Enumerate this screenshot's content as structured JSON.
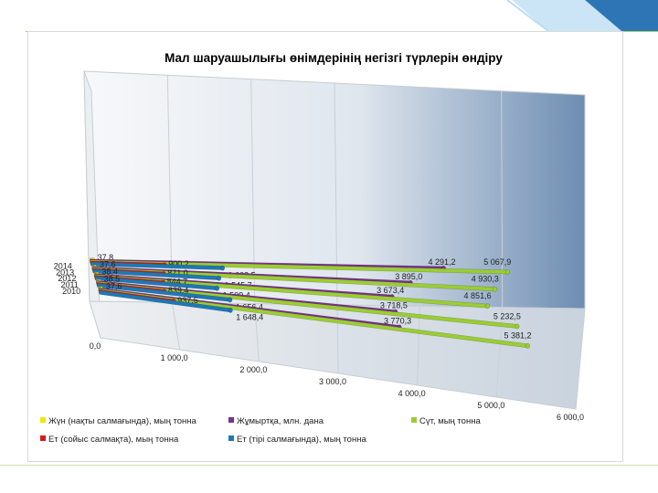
{
  "chart_data": {
    "type": "bar",
    "orientation": "horizontal",
    "title": "Мал шаруашылығы өнімдерінің негізгі түрлерін өндіру",
    "categories": [
      "2014",
      "2013",
      "2012",
      "2011",
      "2010"
    ],
    "xlim": [
      0,
      6000
    ],
    "xticks": [
      "0,0",
      "1 000,0",
      "2 000,0",
      "3 000,0",
      "4 000,0",
      "5 000,0",
      "6 000,0"
    ],
    "grid": true,
    "legend_position": "bottom",
    "series": [
      {
        "name": "Жүн (нақты салмағында), мың тонна",
        "color": "#f2e600",
        "values": [
          37.8,
          37.6,
          38.4,
          38.5,
          37.6
        ],
        "labels": [
          "37,8",
          "37,6",
          "38,4",
          "38,5",
          "37,6"
        ]
      },
      {
        "name": "Жұмыртқа, млн. дана",
        "color": "#7b2f8e",
        "values": [
          4291.2,
          3895.0,
          3673.4,
          3718.5,
          3770.3
        ],
        "labels": [
          "4 291,2",
          "3 895,0",
          "3 673,4",
          "3 718,5",
          "3 770,3"
        ]
      },
      {
        "name": "Сүт, мың тонна",
        "color": "#9acd32",
        "values": [
          5067.9,
          4930.3,
          4851.6,
          5232.5,
          5381.2
        ],
        "labels": [
          "5 067,9",
          "4 930,3",
          "4 851,6",
          "5 232,5",
          "5 381,2"
        ]
      },
      {
        "name": "Ет (сойыс салмақта), мың тонна",
        "color": "#d7191c",
        "values": [
          900.2,
          871.0,
          844.7,
          839.4,
          937.5
        ],
        "labels": [
          "900,2",
          "871,0",
          "844,7",
          "839,4",
          "937,5"
        ]
      },
      {
        "name": "Ет (тірі салмағында), мың тонна",
        "color": "#1f78b4",
        "values": [
          1603.5,
          1545.7,
          1509.4,
          1656.4,
          1648.4
        ],
        "labels": [
          "1 603,5",
          "1 545,7",
          "1 509,4",
          "1 656,4",
          "1 648,4"
        ]
      }
    ],
    "legend_order": [
      0,
      1,
      2,
      3,
      4
    ]
  },
  "colors": {
    "wall_light": "#f4f6f8",
    "wall_dark": "#6f8fb3",
    "accent_blue": "#2e75b6",
    "rule_green": "#9fd36a"
  }
}
